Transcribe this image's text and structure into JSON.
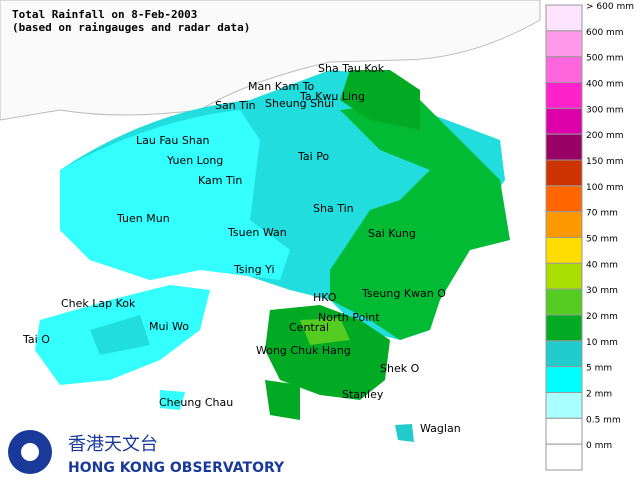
{
  "header": {
    "title": "Total Rainfall on 8-Feb-2003",
    "subtitle": "(based on raingauges and radar data)"
  },
  "legend": {
    "items": [
      {
        "label": "> 600 mm",
        "color": "#ffe4ff"
      },
      {
        "label": "600 mm",
        "color": "#ff99e8"
      },
      {
        "label": "500 mm",
        "color": "#ff66dd"
      },
      {
        "label": "400 mm",
        "color": "#ff22cc"
      },
      {
        "label": "300 mm",
        "color": "#dd00aa"
      },
      {
        "label": "200 mm",
        "color": "#990066"
      },
      {
        "label": "150 mm",
        "color": "#cc3300"
      },
      {
        "label": "100 mm",
        "color": "#ff6600"
      },
      {
        "label": "70 mm",
        "color": "#ff9900"
      },
      {
        "label": "50 mm",
        "color": "#ffdd00"
      },
      {
        "label": "40 mm",
        "color": "#aadd00"
      },
      {
        "label": "30 mm",
        "color": "#55cc22"
      },
      {
        "label": "20 mm",
        "color": "#00aa22"
      },
      {
        "label": "10 mm",
        "color": "#22cccc"
      },
      {
        "label": "5 mm",
        "color": "#00ffff"
      },
      {
        "label": "2 mm",
        "color": "#aaffff"
      },
      {
        "label": "0.5 mm",
        "color": "#ffffff"
      },
      {
        "label": "0 mm",
        "color": "#ffffff"
      }
    ]
  },
  "places": [
    "Sha Tau Kok",
    "Man Kam To",
    "Ta Kwu Ling",
    "San Tin",
    "Sheung Shui",
    "Lau Fau Shan",
    "Yuen Long",
    "Tai Po",
    "Kam Tin",
    "Sha Tin",
    "Tuen Mun",
    "Tsuen Wan",
    "Sai Kung",
    "Tsing Yi",
    "Chek Lap Kok",
    "HKO",
    "Tseung Kwan O",
    "Mui Wo",
    "North Point",
    "Central",
    "Tai O",
    "Wong Chuk Hang",
    "Shek O",
    "Stanley",
    "Cheung Chau",
    "Waglan"
  ],
  "logo": {
    "chinese": "香港天文台",
    "english": "HONG KONG OBSERVATORY"
  }
}
